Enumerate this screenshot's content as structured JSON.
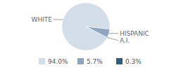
{
  "chart_data": {
    "type": "pie",
    "categories": [
      "WHITE",
      "HISPANIC",
      "A.I."
    ],
    "values": [
      94.0,
      5.7,
      0.3
    ],
    "value_labels": [
      "94.0%",
      "5.7%",
      "0.3%"
    ],
    "colors": [
      "#d4dee9",
      "#8da5be",
      "#2d5f7e"
    ],
    "legend": "bottom"
  }
}
